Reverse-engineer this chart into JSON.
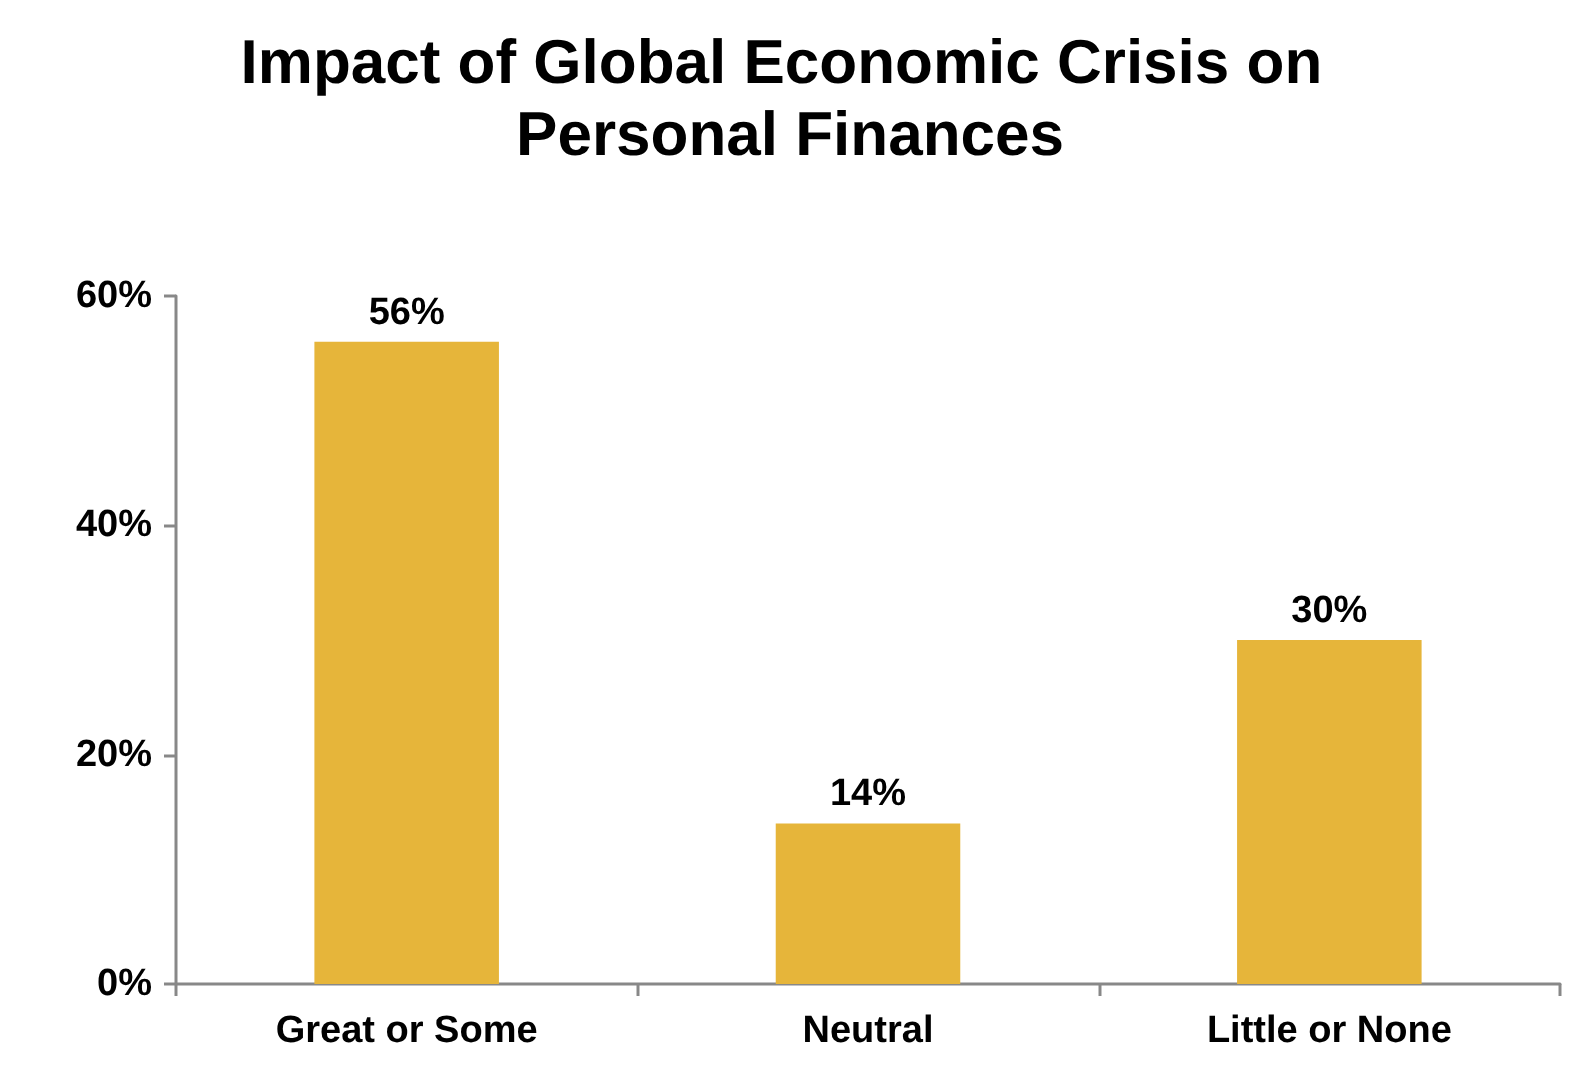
{
  "chart_data": {
    "type": "bar",
    "title": "Impact of Global Economic Crisis on Personal Finances",
    "categories": [
      "Great or Some",
      "Neutral",
      "Little or None"
    ],
    "values": [
      56,
      14,
      30
    ],
    "color": "#e6b53a",
    "value_labels": [
      "56%",
      "14%",
      "30%"
    ],
    "ylim": [
      0,
      60
    ],
    "yticks": [
      {
        "value": 0,
        "label": "0%"
      },
      {
        "value": 20,
        "label": "20%"
      },
      {
        "value": 40,
        "label": "40%"
      },
      {
        "value": 60,
        "label": "60%"
      }
    ],
    "grid": false
  }
}
